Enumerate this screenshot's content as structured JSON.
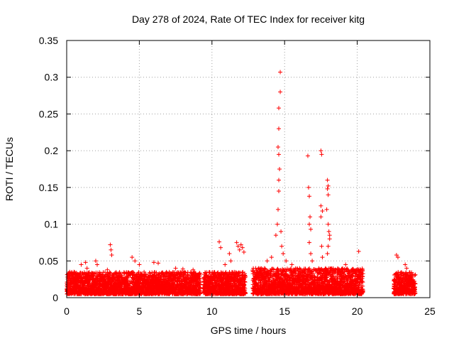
{
  "chart_data": {
    "type": "scatter",
    "title": "Day 278 of 2024, Rate Of TEC Index for receiver kitg",
    "xlabel": "GPS time / hours",
    "ylabel": "ROTI / TECUs",
    "xlim": [
      0,
      25
    ],
    "ylim": [
      0,
      0.35
    ],
    "xticks": [
      0,
      5,
      10,
      15,
      20,
      25
    ],
    "xtick_labels": [
      "0",
      "5",
      "10",
      "15",
      "20",
      "25"
    ],
    "yticks": [
      0,
      0.05,
      0.1,
      0.15,
      0.2,
      0.25,
      0.3,
      0.35
    ],
    "ytick_labels": [
      "0",
      "0.05",
      "0.1",
      "0.15",
      "0.2",
      "0.25",
      "0.3",
      "0.35"
    ],
    "grid": true,
    "marker": "+",
    "series_color": "#ff0000",
    "dense_segments": [
      {
        "x_start": 0.0,
        "x_end": 9.2,
        "y_max": 0.035
      },
      {
        "x_start": 9.4,
        "x_end": 12.3,
        "y_max": 0.035
      },
      {
        "x_start": 12.8,
        "x_end": 20.4,
        "y_max": 0.04
      },
      {
        "x_start": 22.5,
        "x_end": 24.0,
        "y_max": 0.035
      }
    ],
    "notable_points": [
      {
        "x": 0.2,
        "y": 0.032
      },
      {
        "x": 0.5,
        "y": 0.035
      },
      {
        "x": 1.0,
        "y": 0.045
      },
      {
        "x": 1.3,
        "y": 0.048
      },
      {
        "x": 1.4,
        "y": 0.04
      },
      {
        "x": 2.0,
        "y": 0.05
      },
      {
        "x": 2.1,
        "y": 0.045
      },
      {
        "x": 2.8,
        "y": 0.038
      },
      {
        "x": 3.0,
        "y": 0.072
      },
      {
        "x": 3.05,
        "y": 0.065
      },
      {
        "x": 3.1,
        "y": 0.058
      },
      {
        "x": 4.5,
        "y": 0.055
      },
      {
        "x": 4.7,
        "y": 0.05
      },
      {
        "x": 5.0,
        "y": 0.045
      },
      {
        "x": 6.0,
        "y": 0.048
      },
      {
        "x": 6.3,
        "y": 0.047
      },
      {
        "x": 7.5,
        "y": 0.04
      },
      {
        "x": 8.0,
        "y": 0.039
      },
      {
        "x": 8.7,
        "y": 0.038
      },
      {
        "x": 10.5,
        "y": 0.076
      },
      {
        "x": 10.6,
        "y": 0.068
      },
      {
        "x": 10.9,
        "y": 0.045
      },
      {
        "x": 11.2,
        "y": 0.06
      },
      {
        "x": 11.3,
        "y": 0.05
      },
      {
        "x": 11.7,
        "y": 0.075
      },
      {
        "x": 11.8,
        "y": 0.07
      },
      {
        "x": 11.9,
        "y": 0.065
      },
      {
        "x": 12.0,
        "y": 0.072
      },
      {
        "x": 12.1,
        "y": 0.068
      },
      {
        "x": 12.2,
        "y": 0.062
      },
      {
        "x": 13.2,
        "y": 0.04
      },
      {
        "x": 13.8,
        "y": 0.05
      },
      {
        "x": 14.1,
        "y": 0.055
      },
      {
        "x": 14.4,
        "y": 0.085
      },
      {
        "x": 14.5,
        "y": 0.1
      },
      {
        "x": 14.55,
        "y": 0.12
      },
      {
        "x": 14.6,
        "y": 0.145
      },
      {
        "x": 14.6,
        "y": 0.16
      },
      {
        "x": 14.65,
        "y": 0.175
      },
      {
        "x": 14.6,
        "y": 0.195
      },
      {
        "x": 14.55,
        "y": 0.205
      },
      {
        "x": 14.6,
        "y": 0.23
      },
      {
        "x": 14.6,
        "y": 0.258
      },
      {
        "x": 14.7,
        "y": 0.28
      },
      {
        "x": 14.7,
        "y": 0.307
      },
      {
        "x": 14.75,
        "y": 0.09
      },
      {
        "x": 14.8,
        "y": 0.07
      },
      {
        "x": 14.9,
        "y": 0.06
      },
      {
        "x": 15.1,
        "y": 0.05
      },
      {
        "x": 15.5,
        "y": 0.045
      },
      {
        "x": 16.6,
        "y": 0.193
      },
      {
        "x": 16.65,
        "y": 0.15
      },
      {
        "x": 16.7,
        "y": 0.138
      },
      {
        "x": 16.75,
        "y": 0.11
      },
      {
        "x": 16.7,
        "y": 0.1
      },
      {
        "x": 16.8,
        "y": 0.093
      },
      {
        "x": 16.7,
        "y": 0.075
      },
      {
        "x": 16.8,
        "y": 0.06
      },
      {
        "x": 16.9,
        "y": 0.05
      },
      {
        "x": 17.5,
        "y": 0.2
      },
      {
        "x": 17.55,
        "y": 0.195
      },
      {
        "x": 17.5,
        "y": 0.125
      },
      {
        "x": 17.6,
        "y": 0.118
      },
      {
        "x": 17.5,
        "y": 0.11
      },
      {
        "x": 17.55,
        "y": 0.07
      },
      {
        "x": 17.6,
        "y": 0.055
      },
      {
        "x": 17.95,
        "y": 0.16
      },
      {
        "x": 18.0,
        "y": 0.152
      },
      {
        "x": 17.95,
        "y": 0.148
      },
      {
        "x": 18.0,
        "y": 0.14
      },
      {
        "x": 17.9,
        "y": 0.12
      },
      {
        "x": 18.0,
        "y": 0.1
      },
      {
        "x": 18.05,
        "y": 0.09
      },
      {
        "x": 18.1,
        "y": 0.085
      },
      {
        "x": 18.1,
        "y": 0.08
      },
      {
        "x": 18.0,
        "y": 0.07
      },
      {
        "x": 17.95,
        "y": 0.06
      },
      {
        "x": 19.2,
        "y": 0.045
      },
      {
        "x": 20.1,
        "y": 0.063
      },
      {
        "x": 22.7,
        "y": 0.058
      },
      {
        "x": 22.8,
        "y": 0.055
      },
      {
        "x": 23.3,
        "y": 0.045
      },
      {
        "x": 23.4,
        "y": 0.04
      }
    ]
  }
}
